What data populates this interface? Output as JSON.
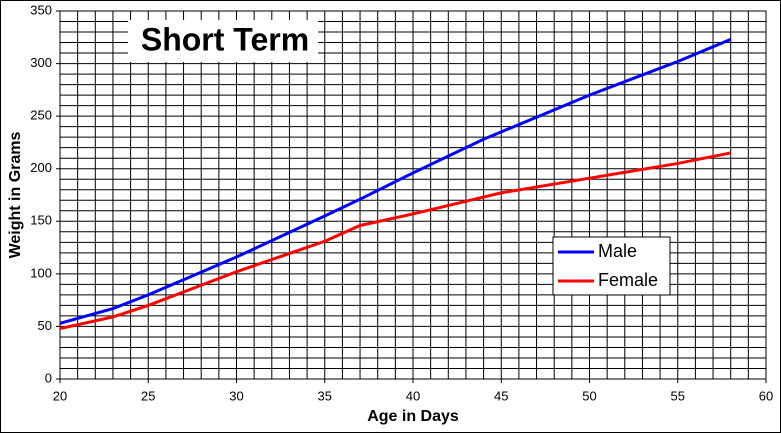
{
  "chart_data": {
    "type": "line",
    "title": "Short Term",
    "x_label": "Age in Days",
    "y_label": "Weight in Grams",
    "x": [
      20,
      23,
      25,
      30,
      35,
      37,
      40,
      44,
      45,
      50,
      55,
      58
    ],
    "series": [
      {
        "name": "Male",
        "color": "#0000ff",
        "values": [
          53,
          67,
          80,
          116,
          155,
          171,
          196,
          228,
          235,
          270,
          302,
          323
        ]
      },
      {
        "name": "Female",
        "color": "#ff0000",
        "values": [
          48,
          59,
          70,
          102,
          131,
          146,
          157,
          173,
          177,
          191,
          205,
          215
        ]
      }
    ],
    "xlim": [
      20,
      60
    ],
    "xticks": [
      20,
      25,
      30,
      35,
      40,
      45,
      50,
      55,
      60
    ],
    "ylim": [
      0,
      350
    ],
    "yticks": [
      0,
      50,
      100,
      150,
      200,
      250,
      300,
      350
    ],
    "xminorticks": [
      21,
      22,
      23,
      24,
      26,
      27,
      28,
      29,
      31,
      32,
      33,
      34,
      36,
      37,
      38,
      39,
      41,
      42,
      43,
      44,
      46,
      47,
      48,
      49,
      51,
      52,
      53,
      54,
      56,
      57,
      58,
      59
    ],
    "yminorticks": [
      10,
      20,
      30,
      40,
      60,
      70,
      80,
      90,
      110,
      120,
      130,
      140,
      160,
      170,
      180,
      190,
      210,
      220,
      230,
      240,
      260,
      270,
      280,
      290,
      310,
      320,
      330,
      340
    ],
    "grid": true,
    "legend": "right"
  }
}
